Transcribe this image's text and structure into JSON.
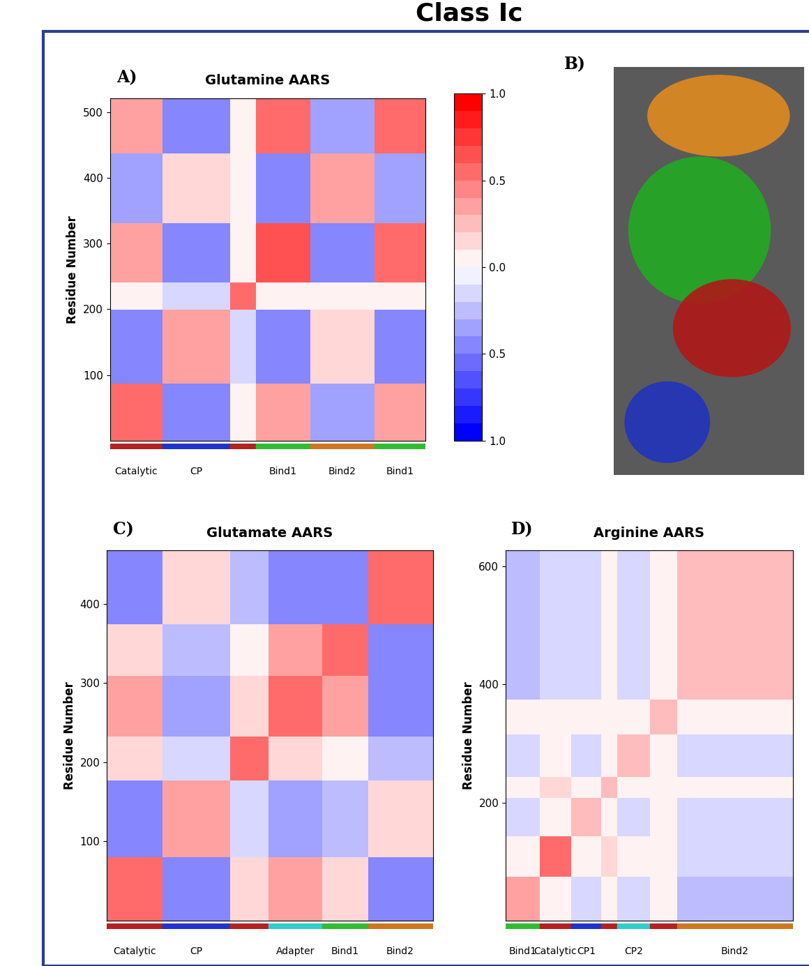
{
  "title": "Class Ic",
  "colorbar": {
    "range": [
      -1.0,
      1.0
    ],
    "ticks": [
      1.0,
      0.5,
      0.0,
      {
        "value": -0.5,
        "label": "0.5"
      },
      {
        "value": -1.0,
        "label": "1.0"
      }
    ]
  },
  "structure_panel": {
    "label": "B)"
  },
  "chart_data": [
    {
      "type": "heatmap",
      "panel": "A)",
      "title": "Glutamine AARS",
      "y_label": "Residue Number",
      "xlim": [
        0,
        522
      ],
      "ylim": [
        0,
        522
      ],
      "yticks": [
        100,
        200,
        300,
        400,
        500
      ],
      "tick_labels": "y",
      "domains": [
        {
          "name": "Catalytic",
          "start": 0,
          "end": 87,
          "color": "#b22222"
        },
        {
          "name": "CP",
          "start": 87,
          "end": 199,
          "color": "#2233cc"
        },
        {
          "name": null,
          "start": 199,
          "end": 241,
          "color": "#b22222"
        },
        {
          "name": "Bind1",
          "start": 241,
          "end": 331,
          "color": "#33bb33"
        },
        {
          "name": "Bind2",
          "start": 331,
          "end": 438,
          "color": "#cc7722"
        },
        {
          "name": "Bind1",
          "start": 438,
          "end": 522,
          "color": "#33bb33"
        }
      ],
      "cells": [
        [
          0.5,
          -0.4,
          0.1,
          0.4,
          -0.3,
          0.4
        ],
        [
          -0.4,
          0.4,
          -0.1,
          -0.5,
          0.2,
          -0.4
        ],
        [
          0.1,
          -0.1,
          0.5,
          0.0,
          0.0,
          0.0
        ],
        [
          0.4,
          -0.5,
          0.0,
          0.7,
          -0.4,
          0.6
        ],
        [
          -0.3,
          0.2,
          0.0,
          -0.4,
          0.4,
          -0.3
        ],
        [
          0.4,
          -0.4,
          0.0,
          0.6,
          -0.3,
          0.6
        ]
      ]
    },
    {
      "type": "heatmap",
      "panel": "C)",
      "title": "Glutamate AARS",
      "y_label": "Residue Number",
      "xlim": [
        0,
        467
      ],
      "ylim": [
        0,
        467
      ],
      "yticks": [
        100,
        200,
        300,
        400
      ],
      "tick_labels": "y",
      "domains": [
        {
          "name": "Catalytic",
          "start": 0,
          "end": 80,
          "color": "#b22222"
        },
        {
          "name": "CP",
          "start": 80,
          "end": 177,
          "color": "#2233cc"
        },
        {
          "name": null,
          "start": 177,
          "end": 232,
          "color": "#b22222"
        },
        {
          "name": "Adapter",
          "start": 232,
          "end": 309,
          "color": "#33cccc"
        },
        {
          "name": "Bind1",
          "start": 309,
          "end": 374,
          "color": "#33bb33"
        },
        {
          "name": "Bind2",
          "start": 374,
          "end": 467,
          "color": "#cc7722"
        }
      ],
      "cells": [
        [
          0.6,
          -0.4,
          0.2,
          0.4,
          0.2,
          -0.4
        ],
        [
          -0.4,
          0.4,
          -0.1,
          -0.3,
          -0.2,
          0.2
        ],
        [
          0.2,
          -0.1,
          0.5,
          0.2,
          0.1,
          -0.2
        ],
        [
          0.4,
          -0.3,
          0.2,
          0.6,
          0.4,
          -0.5
        ],
        [
          0.2,
          -0.2,
          0.1,
          0.4,
          0.5,
          -0.5
        ],
        [
          -0.4,
          0.2,
          -0.2,
          -0.5,
          -0.5,
          0.6
        ]
      ]
    },
    {
      "type": "heatmap",
      "panel": "D)",
      "title": "Arginine AARS",
      "y_label": "Residue Number",
      "xlim": [
        0,
        627
      ],
      "ylim": [
        0,
        627
      ],
      "yticks": [
        200,
        400,
        600
      ],
      "tick_labels": "y",
      "domains": [
        {
          "name": "Bind1",
          "start": 0,
          "end": 74,
          "color": "#33bb33"
        },
        {
          "name": "Catalytic",
          "start": 74,
          "end": 143,
          "color": "#b22222"
        },
        {
          "name": "CP1",
          "start": 143,
          "end": 208,
          "color": "#2233cc"
        },
        {
          "name": null,
          "start": 208,
          "end": 243,
          "color": "#b22222"
        },
        {
          "name": "CP2",
          "start": 243,
          "end": 315,
          "color": "#33cccc"
        },
        {
          "name": null,
          "start": 315,
          "end": 374,
          "color": "#b22222"
        },
        {
          "name": "Bind2",
          "start": 374,
          "end": 627,
          "color": "#cc7722"
        }
      ],
      "cells": [
        [
          0.4,
          0.1,
          -0.1,
          0.0,
          -0.1,
          0.0,
          -0.2
        ],
        [
          0.1,
          0.5,
          0.1,
          0.2,
          0.0,
          0.1,
          -0.1
        ],
        [
          -0.1,
          0.1,
          0.3,
          0.0,
          -0.1,
          0.0,
          -0.1
        ],
        [
          0.0,
          0.2,
          0.0,
          0.3,
          0.1,
          0.1,
          0.0
        ],
        [
          -0.1,
          0.0,
          -0.1,
          0.1,
          0.3,
          0.1,
          -0.1
        ],
        [
          0.0,
          0.1,
          0.0,
          0.1,
          0.1,
          0.3,
          0.1
        ],
        [
          -0.2,
          -0.1,
          -0.1,
          0.0,
          -0.1,
          0.1,
          0.3
        ]
      ]
    }
  ]
}
